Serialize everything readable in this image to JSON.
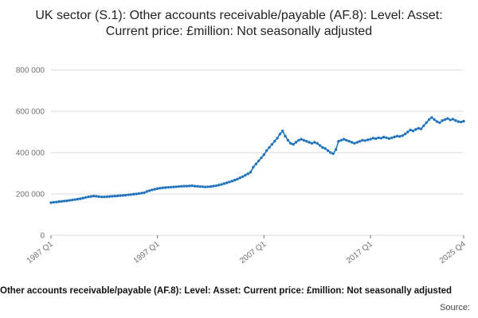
{
  "title": "UK sector (S.1): Other accounts receivable/payable (AF.8): Level: Asset: Current price: £million: Not seasonally adjusted",
  "legend": "Other accounts receivable/payable (AF.8): Level: Asset: Current price: £million: Not seasonally adjusted",
  "source_label": "Source:",
  "colors": {
    "line": "#2073bc",
    "grid": "#d9d9d9",
    "axis_text": "#707070",
    "title_text": "#222222"
  },
  "chart_data": {
    "type": "line",
    "title": "UK sector (S.1): Other accounts receivable/payable (AF.8): Level: Asset: Current price: £million: Not seasonally adjusted",
    "xlabel": "",
    "ylabel": "",
    "units": "£million",
    "frequency": "quarterly",
    "x_start": "1987 Q1",
    "x_end": "2025 Q4",
    "ylim": [
      0,
      800000
    ],
    "grid": "horizontal",
    "legend_position": "bottom",
    "y_ticks": [
      {
        "value": 0,
        "label": "0"
      },
      {
        "value": 200000,
        "label": "200 000"
      },
      {
        "value": 400000,
        "label": "400 000"
      },
      {
        "value": 600000,
        "label": "600 000"
      },
      {
        "value": 800000,
        "label": "800 000"
      }
    ],
    "x_ticks": [
      {
        "index": 0,
        "label": "1987 Q1"
      },
      {
        "index": 40,
        "label": "1997 Q1"
      },
      {
        "index": 80,
        "label": "2007 Q1"
      },
      {
        "index": 120,
        "label": "2017 Q1"
      },
      {
        "index": 155,
        "label": "2025 Q4"
      }
    ],
    "values": [
      158000,
      160000,
      161000,
      163000,
      164000,
      166000,
      167000,
      169000,
      171000,
      173000,
      175000,
      177000,
      180000,
      183000,
      186000,
      188000,
      190000,
      189000,
      187000,
      186000,
      186000,
      187000,
      188000,
      189000,
      190000,
      191000,
      192000,
      193000,
      194000,
      196000,
      197000,
      199000,
      200000,
      202000,
      204000,
      206000,
      212000,
      216000,
      220000,
      223000,
      226000,
      228000,
      230000,
      231000,
      232000,
      233000,
      234000,
      235000,
      236000,
      237000,
      238000,
      238000,
      239000,
      240000,
      238000,
      237000,
      236000,
      235000,
      234000,
      235000,
      236000,
      238000,
      240000,
      243000,
      246000,
      250000,
      254000,
      258000,
      262000,
      267000,
      272000,
      278000,
      284000,
      291000,
      298000,
      306000,
      330000,
      345000,
      360000,
      375000,
      390000,
      410000,
      425000,
      440000,
      455000,
      470000,
      490000,
      505000,
      480000,
      460000,
      445000,
      440000,
      450000,
      460000,
      465000,
      460000,
      455000,
      450000,
      445000,
      450000,
      445000,
      435000,
      425000,
      420000,
      410000,
      400000,
      395000,
      415000,
      455000,
      460000,
      465000,
      460000,
      455000,
      450000,
      445000,
      450000,
      455000,
      460000,
      458000,
      462000,
      465000,
      470000,
      468000,
      472000,
      470000,
      475000,
      472000,
      468000,
      472000,
      476000,
      480000,
      478000,
      482000,
      490000,
      500000,
      510000,
      505000,
      512000,
      518000,
      515000,
      530000,
      545000,
      560000,
      570000,
      560000,
      550000,
      545000,
      555000,
      560000,
      565000,
      558000,
      562000,
      555000,
      550000,
      548000,
      552000
    ]
  }
}
